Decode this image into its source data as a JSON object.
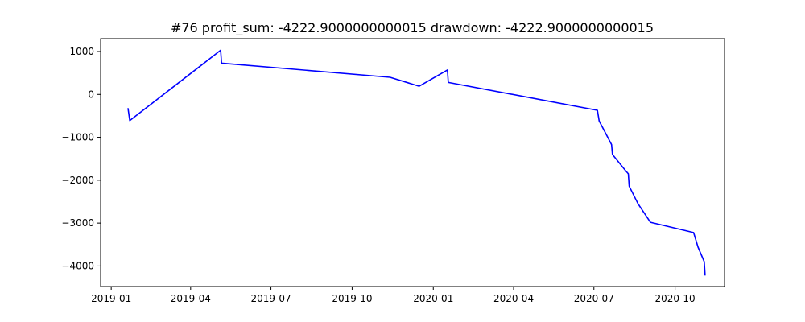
{
  "chart_data": {
    "type": "line",
    "title": "#76   profit_sum: -4222.9000000000015 drawdown: -4222.9000000000015",
    "xlabel": "",
    "ylabel": "",
    "x_axis_type": "date",
    "xlim": [
      "2018-12-20",
      "2020-11-26"
    ],
    "ylim": [
      -4480,
      1300
    ],
    "grid": false,
    "x_ticks": [
      {
        "value": "2019-01-01",
        "label": "2019-01"
      },
      {
        "value": "2019-04-01",
        "label": "2019-04"
      },
      {
        "value": "2019-07-01",
        "label": "2019-07"
      },
      {
        "value": "2019-10-01",
        "label": "2019-10"
      },
      {
        "value": "2020-01-01",
        "label": "2020-01"
      },
      {
        "value": "2020-04-01",
        "label": "2020-04"
      },
      {
        "value": "2020-07-01",
        "label": "2020-07"
      },
      {
        "value": "2020-10-01",
        "label": "2020-10"
      }
    ],
    "y_ticks": [
      {
        "value": 1000,
        "label": "1000"
      },
      {
        "value": 0,
        "label": "0"
      },
      {
        "value": -1000,
        "label": "−1000"
      },
      {
        "value": -2000,
        "label": "−2000"
      },
      {
        "value": -3000,
        "label": "−3000"
      },
      {
        "value": -4000,
        "label": "−4000"
      }
    ],
    "series": [
      {
        "color": "#0000ff",
        "points": [
          {
            "x": "2019-01-20",
            "y": -320
          },
          {
            "x": "2019-01-22",
            "y": -610
          },
          {
            "x": "2019-05-05",
            "y": 1030
          },
          {
            "x": "2019-05-06",
            "y": 730
          },
          {
            "x": "2019-11-13",
            "y": 400
          },
          {
            "x": "2019-12-16",
            "y": 190
          },
          {
            "x": "2020-01-17",
            "y": 570
          },
          {
            "x": "2020-01-18",
            "y": 280
          },
          {
            "x": "2020-07-05",
            "y": -370
          },
          {
            "x": "2020-07-07",
            "y": -620
          },
          {
            "x": "2020-07-21",
            "y": -1170
          },
          {
            "x": "2020-07-22",
            "y": -1400
          },
          {
            "x": "2020-08-06",
            "y": -1780
          },
          {
            "x": "2020-08-09",
            "y": -1850
          },
          {
            "x": "2020-08-10",
            "y": -2140
          },
          {
            "x": "2020-08-20",
            "y": -2550
          },
          {
            "x": "2020-09-03",
            "y": -2980
          },
          {
            "x": "2020-10-22",
            "y": -3220
          },
          {
            "x": "2020-10-27",
            "y": -3560
          },
          {
            "x": "2020-11-03",
            "y": -3900
          },
          {
            "x": "2020-11-04",
            "y": -4223
          }
        ]
      }
    ]
  }
}
